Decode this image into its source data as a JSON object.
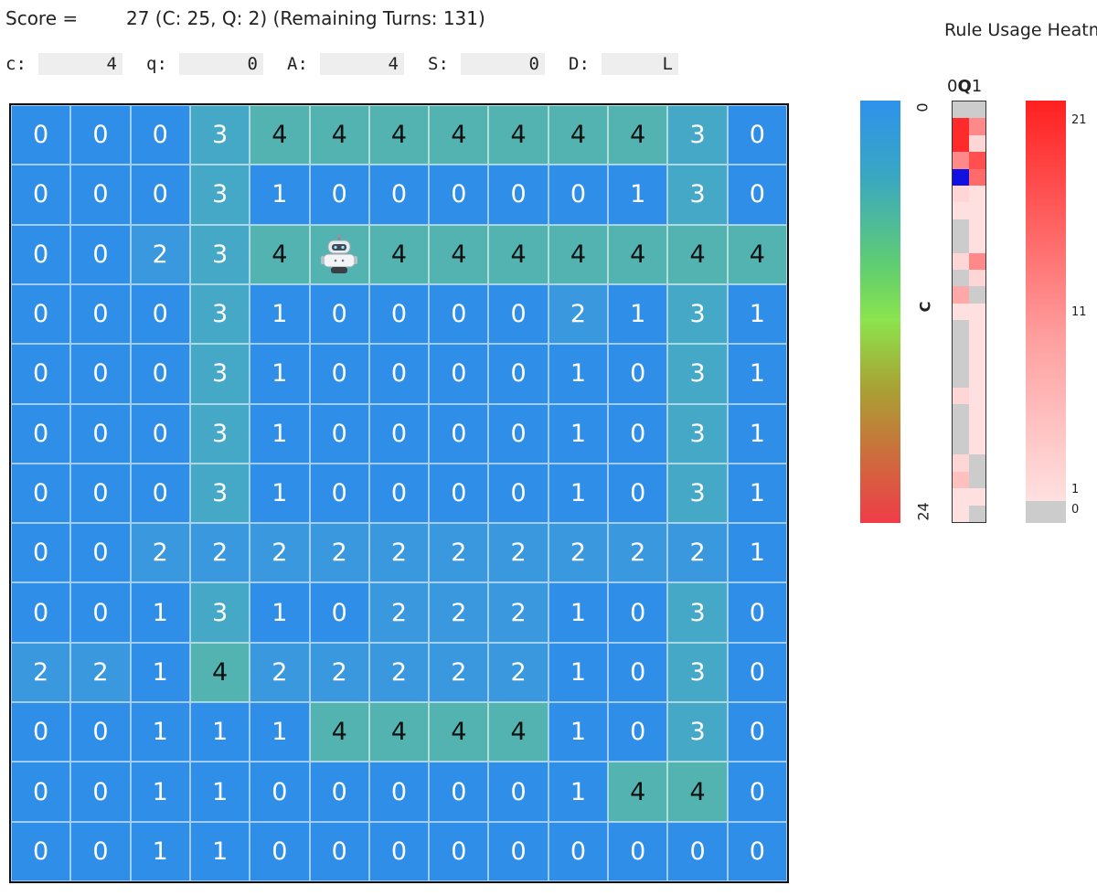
{
  "header": {
    "score_label": "Score =",
    "score_value": "27 (C: 25, Q: 2) (Remaining Turns: 131)"
  },
  "stats": [
    {
      "key": "c:",
      "value": "4"
    },
    {
      "key": "q:",
      "value": "0"
    },
    {
      "key": "A:",
      "value": "4"
    },
    {
      "key": "S:",
      "value": "0"
    },
    {
      "key": "D:",
      "value": "L"
    }
  ],
  "board": {
    "rows": [
      [
        0,
        0,
        0,
        3,
        4,
        4,
        4,
        4,
        4,
        4,
        4,
        3,
        0
      ],
      [
        0,
        0,
        0,
        3,
        1,
        0,
        0,
        0,
        0,
        0,
        1,
        3,
        0
      ],
      [
        0,
        0,
        2,
        3,
        4,
        "robot",
        4,
        4,
        4,
        4,
        4,
        4,
        4
      ],
      [
        0,
        0,
        0,
        3,
        1,
        0,
        0,
        0,
        0,
        2,
        1,
        3,
        1
      ],
      [
        0,
        0,
        0,
        3,
        1,
        0,
        0,
        0,
        0,
        1,
        0,
        3,
        1
      ],
      [
        0,
        0,
        0,
        3,
        1,
        0,
        0,
        0,
        0,
        1,
        0,
        3,
        1
      ],
      [
        0,
        0,
        0,
        3,
        1,
        0,
        0,
        0,
        0,
        1,
        0,
        3,
        1
      ],
      [
        0,
        0,
        2,
        2,
        2,
        2,
        2,
        2,
        2,
        2,
        2,
        2,
        1
      ],
      [
        0,
        0,
        1,
        3,
        1,
        0,
        2,
        2,
        2,
        1,
        0,
        3,
        0
      ],
      [
        2,
        2,
        1,
        4,
        2,
        2,
        2,
        2,
        2,
        1,
        0,
        3,
        0
      ],
      [
        0,
        0,
        1,
        1,
        1,
        4,
        4,
        4,
        4,
        1,
        0,
        3,
        0
      ],
      [
        0,
        0,
        1,
        1,
        0,
        0,
        0,
        0,
        0,
        1,
        4,
        4,
        0
      ],
      [
        0,
        0,
        1,
        1,
        0,
        0,
        0,
        0,
        0,
        0,
        0,
        0,
        0
      ]
    ],
    "robot_icon": "robot-icon"
  },
  "side": {
    "title": "Rule Usage Heatmap",
    "cbar_top": "0",
    "cbar_mid": "C",
    "cbar_bottom": "24",
    "q_head_0": "0",
    "q_head_q": "Q",
    "q_head_1": "1",
    "rbar_labels": [
      "21",
      "11",
      "1",
      "0"
    ],
    "qstrip_cells": [
      [
        "#cccccc",
        "#cccccc"
      ],
      [
        "#ff2a2a",
        "#ff8888"
      ],
      [
        "#ff2a2a",
        "#ffd6d6"
      ],
      [
        "#ff8888",
        "#ff4f4f"
      ],
      [
        "#1010e0",
        "#ff6a6a"
      ],
      [
        "#ffd6d6",
        "#ffe0e0"
      ],
      [
        "#ffe0e0",
        "#ffe0e0"
      ],
      [
        "#cccccc",
        "#ffe0e0"
      ],
      [
        "#cccccc",
        "#ffe0e0"
      ],
      [
        "#ffd6d6",
        "#ff8888"
      ],
      [
        "#cccccc",
        "#ffd6d6"
      ],
      [
        "#ffa8a8",
        "#cccccc"
      ],
      [
        "#ffe0e0",
        "#ffe0e0"
      ],
      [
        "#cccccc",
        "#ffe0e0"
      ],
      [
        "#cccccc",
        "#ffe0e0"
      ],
      [
        "#cccccc",
        "#ffe0e0"
      ],
      [
        "#cccccc",
        "#ffe0e0"
      ],
      [
        "#ffd6d6",
        "#ffe0e0"
      ],
      [
        "#cccccc",
        "#ffe0e0"
      ],
      [
        "#cccccc",
        "#ffe0e0"
      ],
      [
        "#cccccc",
        "#ffe0e0"
      ],
      [
        "#ffd6d6",
        "#cccccc"
      ],
      [
        "#ffc0c0",
        "#cccccc"
      ],
      [
        "#ffe0e0",
        "#ffe0e0"
      ],
      [
        "#ffe0e0",
        "#cccccc"
      ]
    ]
  }
}
